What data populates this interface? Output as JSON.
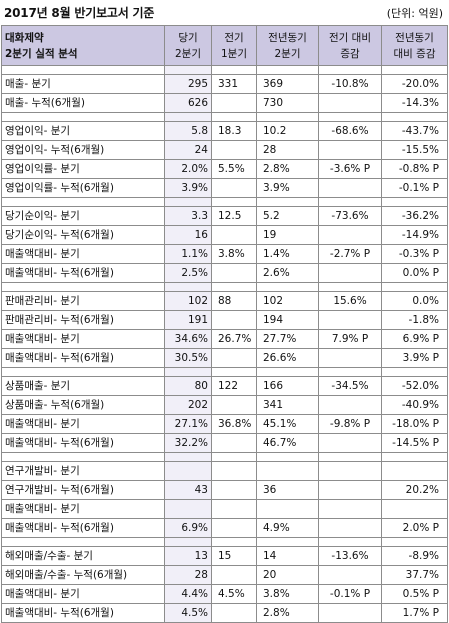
{
  "title": "2017년 8월 반기보고서 기준",
  "unit": "(단위: 억원)",
  "headers": {
    "label_line1": "대화제약",
    "label_line2": "2분기 실적 분석",
    "col1_line1": "당기",
    "col1_line2": "2분기",
    "col2_line1": "전기",
    "col2_line2": "1분기",
    "col3_line1": "전년동기",
    "col3_line2": "2분기",
    "col4_line1": "전기 대비",
    "col4_line2": "증감",
    "col5_line1": "전년동기",
    "col5_line2": "대비 증감"
  },
  "groups": [
    {
      "rows": [
        [
          "매출- 분기",
          "295",
          "331",
          "369",
          "-10.8%",
          "-20.0%"
        ],
        [
          "매출- 누적(6개월)",
          "626",
          "",
          "730",
          "",
          "-14.3%"
        ]
      ]
    },
    {
      "rows": [
        [
          "영업이익- 분기",
          "5.8",
          "18.3",
          "10.2",
          "-68.6%",
          "-43.7%"
        ],
        [
          "영업이익- 누적(6개월)",
          "24",
          "",
          "28",
          "",
          "-15.5%"
        ],
        [
          "영업이익률- 분기",
          "2.0%",
          "5.5%",
          "2.8%",
          "-3.6% P",
          "-0.8% P"
        ],
        [
          "영업이익률- 누적(6개월)",
          "3.9%",
          "",
          "3.9%",
          "",
          "-0.1% P"
        ]
      ]
    },
    {
      "rows": [
        [
          "당기순이익- 분기",
          "3.3",
          "12.5",
          "5.2",
          "-73.6%",
          "-36.2%"
        ],
        [
          "당기순이익- 누적(6개월)",
          "16",
          "",
          "19",
          "",
          "-14.9%"
        ],
        [
          "매출액대비- 분기",
          "1.1%",
          "3.8%",
          "1.4%",
          "-2.7% P",
          "-0.3% P"
        ],
        [
          "매출액대비- 누적(6개월)",
          "2.5%",
          "",
          "2.6%",
          "",
          "0.0% P"
        ]
      ]
    },
    {
      "rows": [
        [
          "판매관리비- 분기",
          "102",
          "88",
          "102",
          "15.6%",
          "0.0%"
        ],
        [
          "판매관리비- 누적(6개월)",
          "191",
          "",
          "194",
          "",
          "-1.8%"
        ],
        [
          "매출액대비- 분기",
          "34.6%",
          "26.7%",
          "27.7%",
          "7.9% P",
          "6.9% P"
        ],
        [
          "매출액대비- 누적(6개월)",
          "30.5%",
          "",
          "26.6%",
          "",
          "3.9% P"
        ]
      ]
    },
    {
      "rows": [
        [
          "상품매출- 분기",
          "80",
          "122",
          "166",
          "-34.5%",
          "-52.0%"
        ],
        [
          "상품매출- 누적(6개월)",
          "202",
          "",
          "341",
          "",
          "-40.9%"
        ],
        [
          "매출액대비- 분기",
          "27.1%",
          "36.8%",
          "45.1%",
          "-9.8% P",
          "-18.0% P"
        ],
        [
          "매출액대비- 누적(6개월)",
          "32.2%",
          "",
          "46.7%",
          "",
          "-14.5% P"
        ]
      ]
    },
    {
      "rows": [
        [
          "연구개발비- 분기",
          "",
          "",
          "",
          "",
          ""
        ],
        [
          "연구개발비- 누적(6개월)",
          "43",
          "",
          "36",
          "",
          "20.2%"
        ],
        [
          "매출액대비- 분기",
          "",
          "",
          "",
          "",
          ""
        ],
        [
          "매출액대비- 누적(6개월)",
          "6.9%",
          "",
          "4.9%",
          "",
          "2.0% P"
        ]
      ]
    },
    {
      "rows": [
        [
          "해외매출/수출- 분기",
          "13",
          "15",
          "14",
          "-13.6%",
          "-8.9%"
        ],
        [
          "해외매출/수출- 누적(6개월)",
          "28",
          "",
          "20",
          "",
          "37.7%"
        ],
        [
          "매출액대비- 분기",
          "4.4%",
          "4.5%",
          "3.8%",
          "-0.1% P",
          "0.5% P"
        ],
        [
          "매출액대비- 누적(6개월)",
          "4.5%",
          "",
          "2.8%",
          "",
          "1.7% P"
        ]
      ]
    }
  ]
}
